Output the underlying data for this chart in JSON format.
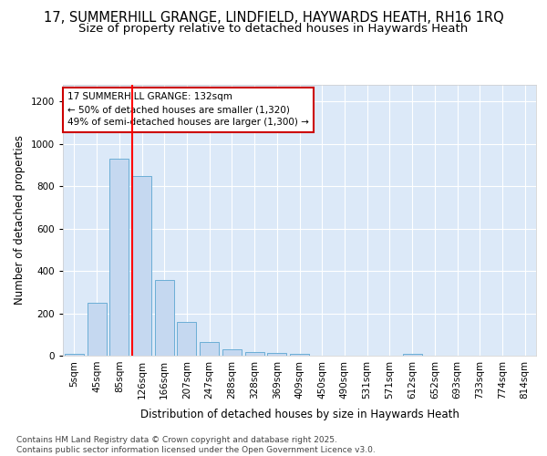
{
  "title1": "17, SUMMERHILL GRANGE, LINDFIELD, HAYWARDS HEATH, RH16 1RQ",
  "title2": "Size of property relative to detached houses in Haywards Heath",
  "xlabel": "Distribution of detached houses by size in Haywards Heath",
  "ylabel": "Number of detached properties",
  "categories": [
    "5sqm",
    "45sqm",
    "85sqm",
    "126sqm",
    "166sqm",
    "207sqm",
    "247sqm",
    "288sqm",
    "328sqm",
    "369sqm",
    "409sqm",
    "450sqm",
    "490sqm",
    "531sqm",
    "571sqm",
    "612sqm",
    "652sqm",
    "693sqm",
    "733sqm",
    "774sqm",
    "814sqm"
  ],
  "values": [
    8,
    248,
    930,
    848,
    358,
    158,
    65,
    30,
    18,
    13,
    10,
    0,
    0,
    0,
    0,
    8,
    0,
    0,
    0,
    0,
    0
  ],
  "bar_color": "#c5d8f0",
  "bar_edge_color": "#6baed6",
  "red_line_index": 3,
  "annotation_text": "17 SUMMERHILL GRANGE: 132sqm\n← 50% of detached houses are smaller (1,320)\n49% of semi-detached houses are larger (1,300) →",
  "annotation_box_facecolor": "#ffffff",
  "annotation_box_edgecolor": "#cc0000",
  "ylim": [
    0,
    1280
  ],
  "yticks": [
    0,
    200,
    400,
    600,
    800,
    1000,
    1200
  ],
  "plot_bg_color": "#dce9f8",
  "fig_bg_color": "#ffffff",
  "grid_color": "#ffffff",
  "footer_text": "Contains HM Land Registry data © Crown copyright and database right 2025.\nContains public sector information licensed under the Open Government Licence v3.0.",
  "title1_fontsize": 10.5,
  "title2_fontsize": 9.5,
  "tick_fontsize": 7.5,
  "ylabel_fontsize": 8.5,
  "xlabel_fontsize": 8.5,
  "footer_fontsize": 6.5,
  "annot_fontsize": 7.5
}
